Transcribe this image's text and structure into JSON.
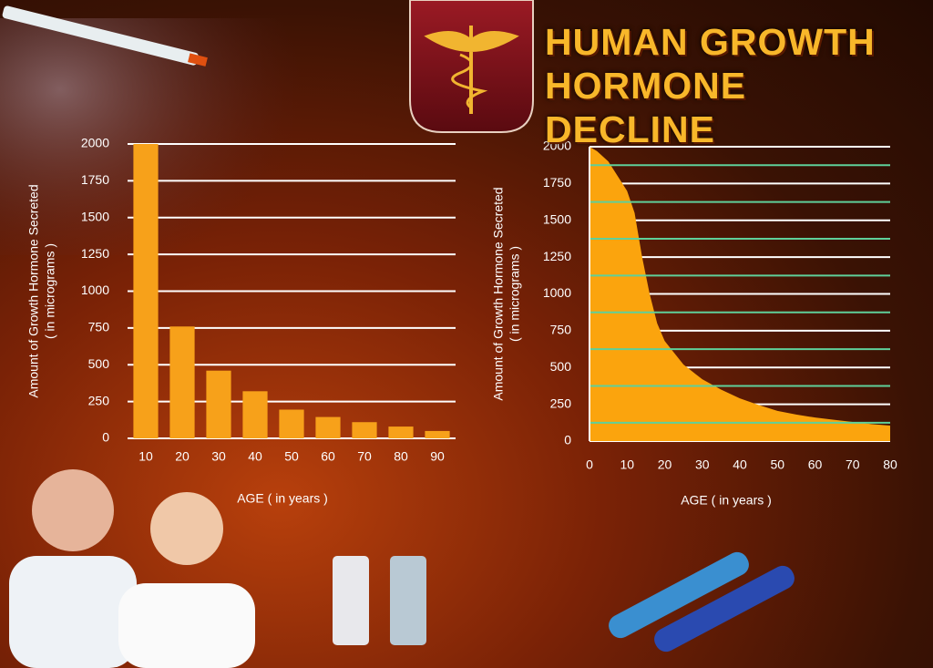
{
  "title": "HUMAN GROWTH HORMONE DECLINE",
  "chart_data": [
    {
      "type": "bar",
      "x_label": "AGE ( in years )",
      "y_label": [
        "Amount of Growth Hormone Secreted",
        "( in micrograms )"
      ],
      "categories": [
        "10",
        "20",
        "30",
        "40",
        "50",
        "60",
        "70",
        "80",
        "90"
      ],
      "values": [
        2000,
        760,
        460,
        320,
        195,
        145,
        110,
        80,
        50
      ],
      "color": "#f7a11a",
      "ylim": [
        0,
        2000
      ],
      "yticks": [
        0,
        250,
        500,
        750,
        1000,
        1250,
        1500,
        1750,
        2000
      ],
      "grid": true
    },
    {
      "type": "area",
      "x_label": "AGE ( in years )",
      "y_label": [
        "Amount of Growth Hormone Secreted",
        "( in micrograms )"
      ],
      "x": [
        0,
        2,
        5,
        8,
        10,
        12,
        14,
        16,
        18,
        20,
        25,
        30,
        35,
        40,
        45,
        50,
        55,
        60,
        65,
        70,
        75,
        80
      ],
      "values": [
        2000,
        1970,
        1900,
        1780,
        1700,
        1550,
        1250,
        1000,
        800,
        680,
        520,
        420,
        350,
        290,
        245,
        205,
        180,
        160,
        145,
        130,
        115,
        105
      ],
      "color": "#fba40d",
      "xlim": [
        0,
        80
      ],
      "xticks": [
        0,
        10,
        20,
        30,
        40,
        50,
        60,
        70,
        80
      ],
      "ylim": [
        0,
        2000
      ],
      "yticks": [
        0,
        250,
        500,
        750,
        1000,
        1250,
        1500,
        1750,
        2000
      ],
      "minor_yticks": [
        125,
        375,
        625,
        875,
        1125,
        1375,
        1625,
        1875
      ],
      "minor_grid_color": "#5fd09a",
      "grid": true
    }
  ]
}
